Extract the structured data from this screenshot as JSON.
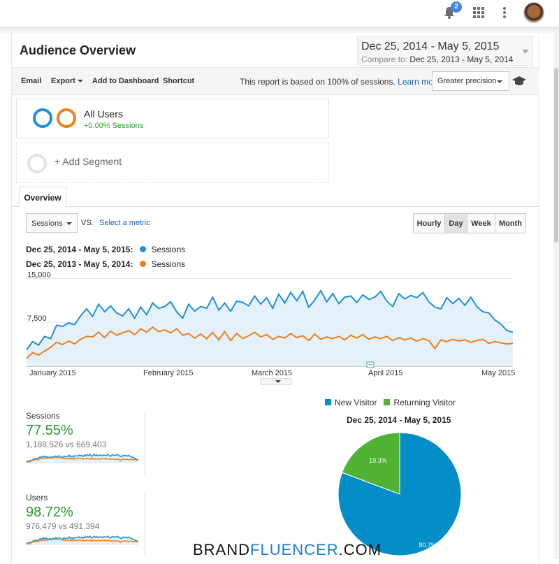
{
  "topbar": {
    "notification_count": "2",
    "icons": [
      "bell-icon",
      "apps-grid-icon",
      "more-vert-icon",
      "avatar"
    ]
  },
  "header": {
    "title": "Audience Overview",
    "date_range": "Dec 25, 2014 - May 5, 2015",
    "compare_label": "Compare to:",
    "compare_range": "Dec 25, 2013 - May 5, 2014"
  },
  "toolbar": {
    "email": "Email",
    "export": "Export",
    "add_dashboard": "Add to Dashboard",
    "shortcut": "Shortcut",
    "report_note": "This report is based on 100% of sessions.",
    "learn_more": "Learn more",
    "precision": "Greater precision"
  },
  "segments": {
    "all_users": "All Users",
    "all_users_sub": "+0.00% Sessions",
    "add_segment": "+ Add Segment"
  },
  "tabs": {
    "overview": "Overview"
  },
  "chart_controls": {
    "metric": "Sessions",
    "vs": "VS.",
    "select_metric": "Select a metric",
    "granularity": [
      "Hourly",
      "Day",
      "Week",
      "Month"
    ],
    "active": "Day"
  },
  "legend": [
    {
      "range": "Dec 25, 2014 - May 5, 2015:",
      "series": "Sessions",
      "color": "#1f8fd6"
    },
    {
      "range": "Dec 25, 2013 - May 5, 2014:",
      "series": "Sessions",
      "color": "#ef7f1a"
    }
  ],
  "chart_data": [
    {
      "type": "line",
      "x_labels": [
        "January 2015",
        "February 2015",
        "March 2015",
        "April 2015",
        "May 2015"
      ],
      "y_ticks": [
        "15,000",
        "7,500"
      ],
      "ylim": [
        0,
        16000
      ],
      "grid": true,
      "series": [
        {
          "name": "Sessions",
          "range": "Dec 25, 2014 - May 5, 2015",
          "color": "#1f8fd6",
          "values": [
            2800,
            4200,
            3600,
            5100,
            4700,
            7000,
            6800,
            7400,
            7100,
            8600,
            9800,
            8500,
            10600,
            9300,
            10300,
            9100,
            8600,
            9800,
            8200,
            10100,
            8800,
            10800,
            9900,
            10200,
            11000,
            9300,
            8200,
            10600,
            9400,
            10200,
            9900,
            11800,
            9600,
            10800,
            9400,
            11100,
            10900,
            10300,
            12000,
            10600,
            11700,
            9900,
            12300,
            10800,
            12600,
            11200,
            12800,
            10100,
            11300,
            12900,
            11000,
            12400,
            10700,
            11800,
            12000,
            10900,
            12200,
            11400,
            11800,
            12800,
            11100,
            10200,
            12400,
            11500,
            12100,
            11700,
            12600,
            11000,
            10100,
            9800,
            11700,
            10700,
            11600,
            10400,
            11800,
            10200,
            9300,
            9100,
            7900,
            7200,
            6100,
            5800
          ]
        },
        {
          "name": "Sessions",
          "range": "Dec 25, 2013 - May 5, 2014",
          "color": "#ef7f1a",
          "values": [
            1300,
            2300,
            1900,
            2600,
            3200,
            4100,
            3700,
            4300,
            3800,
            4600,
            5100,
            5000,
            5800,
            4900,
            6000,
            5300,
            5700,
            6100,
            5400,
            6400,
            5800,
            6700,
            5900,
            6200,
            5700,
            6400,
            5300,
            5600,
            4800,
            5500,
            4700,
            5800,
            4500,
            5900,
            4400,
            5600,
            4700,
            5200,
            5800,
            5000,
            5400,
            4600,
            5100,
            4800,
            5600,
            4900,
            5200,
            4400,
            5500,
            4600,
            5000,
            4700,
            5100,
            4500,
            5300,
            4800,
            5400,
            4600,
            5000,
            4700,
            5100,
            4400,
            4900,
            4500,
            4800,
            4300,
            4700,
            4400,
            3000,
            4500,
            4200,
            4600,
            4300,
            4500,
            4100,
            4400,
            4600,
            3900,
            4200,
            4000,
            3800,
            3900
          ]
        }
      ]
    },
    {
      "type": "pie",
      "title": "Dec 25, 2014 - May 5, 2015",
      "slices": [
        {
          "name": "New Visitor",
          "value": 80.7,
          "label": "80.7%",
          "color": "#058dc7"
        },
        {
          "name": "Returning Visitor",
          "value": 19.3,
          "label": "19.3%",
          "color": "#50b432"
        }
      ]
    }
  ],
  "summary": [
    {
      "label": "Sessions",
      "pct": "77.55%",
      "cmp": "1,188,526 vs 669,403"
    },
    {
      "label": "Users",
      "pct": "98.72%",
      "cmp": "976,479 vs 491,394"
    }
  ],
  "watermark": {
    "a": "BRAND",
    "b": "FLUENCER",
    "c": ".COM"
  }
}
